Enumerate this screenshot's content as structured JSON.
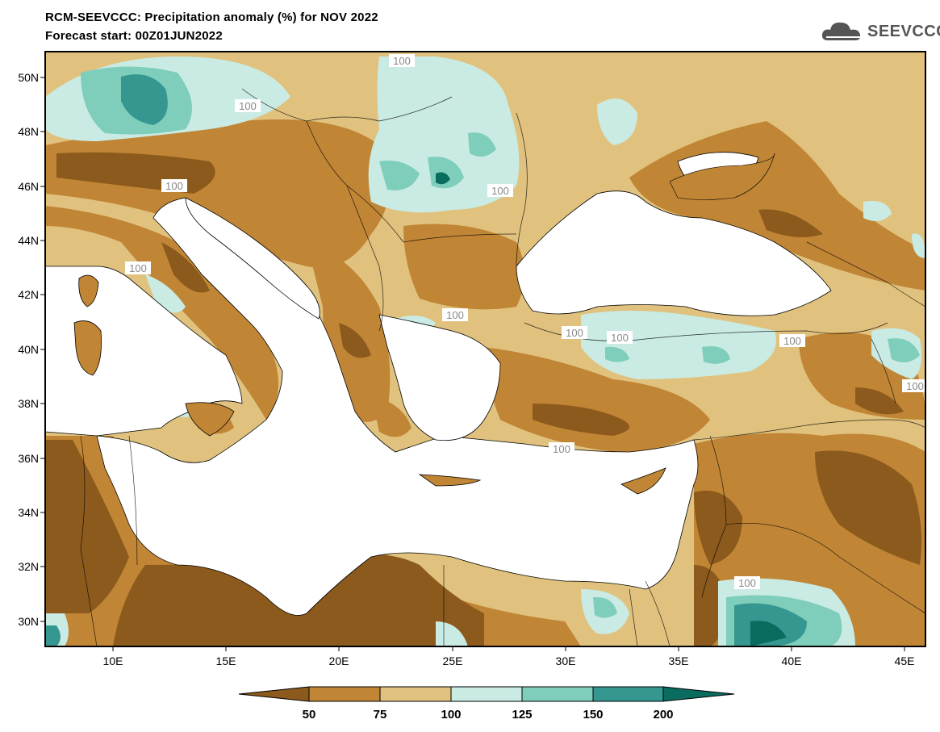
{
  "header": {
    "title": "RCM-SEEVCCC: Precipitation anomaly (%) for NOV 2022",
    "subtitle": "Forecast start: 00Z01JUN2022",
    "logo_text": "SEEVCCC"
  },
  "map": {
    "lat_labels": [
      "50N",
      "48N",
      "46N",
      "44N",
      "42N",
      "40N",
      "38N",
      "36N",
      "34N",
      "32N",
      "30N"
    ],
    "lon_labels": [
      "10E",
      "15E",
      "20E",
      "25E",
      "30E",
      "35E",
      "40E",
      "45E"
    ],
    "contour_labels": [
      "100",
      "100",
      "100",
      "100",
      "100",
      "100",
      "100",
      "100",
      "100",
      "100",
      "100",
      "100"
    ]
  },
  "legend": {
    "ticks": [
      "50",
      "75",
      "100",
      "125",
      "150",
      "200"
    ],
    "colors": [
      "#8c5a1c",
      "#c08535",
      "#e0c27e",
      "#c9ebe3",
      "#7fcdbb",
      "#35978f",
      "#0a6b5f"
    ]
  }
}
